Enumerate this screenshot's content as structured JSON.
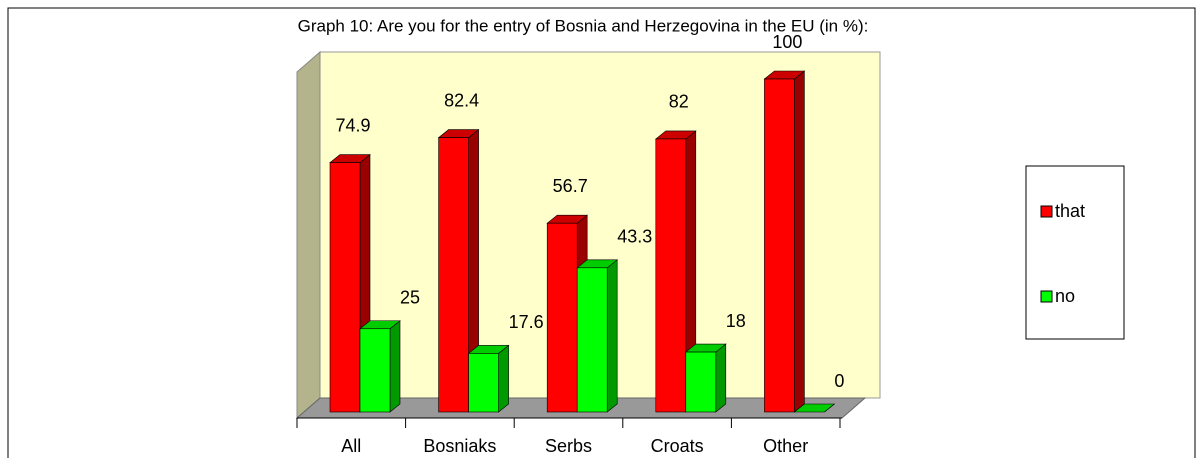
{
  "chart_data": {
    "type": "bar3d",
    "title": "Graph 10: Are you for the entry of Bosnia and Herzegovina in the EU (in %):",
    "categories": [
      "All",
      "Bosniaks",
      "Serbs",
      "Croats",
      "Other"
    ],
    "series": [
      {
        "name": "that",
        "color": "#ff0000",
        "values": [
          74.9,
          82.4,
          56.7,
          82,
          100
        ]
      },
      {
        "name": "no",
        "color": "#00ff00",
        "values": [
          25,
          17.6,
          43.3,
          18,
          0
        ]
      }
    ],
    "ylim": [
      0,
      100
    ],
    "legend": "right"
  }
}
